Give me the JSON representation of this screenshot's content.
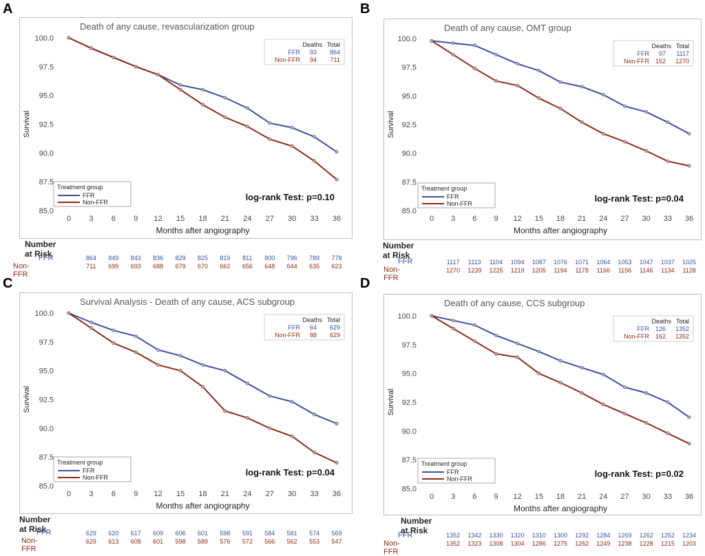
{
  "colors": {
    "ffr": "#3b4ea0",
    "non_ffr": "#8b2a17",
    "grid": "#dddddd",
    "frame": "#bdbdbd"
  },
  "common": {
    "x_ticks": [
      "0",
      "3",
      "6",
      "9",
      "12",
      "15",
      "18",
      "21",
      "24",
      "27",
      "30",
      "33",
      "36"
    ],
    "y_ticks": [
      "100.0",
      "97.5",
      "95.0",
      "92.5",
      "90.0",
      "87.5",
      "85.0"
    ],
    "xlabel": "Months after angiography",
    "ylabel": "Survival",
    "legend_title": "Treatment group",
    "legend_ffr": "FFR",
    "legend_nonffr": "Non-FFR",
    "stats_deaths": "Deaths",
    "stats_total": "Total",
    "stats_ffr": "FFR",
    "stats_nonffr": "Non-FFR",
    "risk_title": "Number at Risk",
    "risk_ffr": "FFR",
    "risk_nonffr": "Non-FFR"
  },
  "chart_data": [
    {
      "type": "line",
      "panel": "A",
      "title": "Death of any cause, revascularization group",
      "xlabel": "Months after angiography",
      "ylabel": "Survival",
      "x": [
        0,
        3,
        6,
        9,
        12,
        15,
        18,
        21,
        24,
        27,
        30,
        33,
        36
      ],
      "xlim": [
        0,
        36
      ],
      "ylim": [
        85,
        100
      ],
      "series": [
        {
          "name": "FFR",
          "values": [
            100.0,
            99.1,
            98.3,
            97.5,
            96.8,
            95.9,
            95.5,
            94.8,
            93.9,
            92.6,
            92.2,
            91.4,
            90.1
          ]
        },
        {
          "name": "Non-FFR",
          "values": [
            100.0,
            99.1,
            98.3,
            97.5,
            96.8,
            95.5,
            94.2,
            93.1,
            92.3,
            91.2,
            90.6,
            89.3,
            87.7
          ]
        }
      ],
      "deaths": {
        "ffr": "93",
        "nonffr": "94"
      },
      "total": {
        "ffr": "864",
        "nonffr": "711"
      },
      "logrank": "log-rank Test: p=0.10",
      "risk": {
        "ffr": [
          "864",
          "849",
          "843",
          "836",
          "829",
          "825",
          "819",
          "811",
          "800",
          "796",
          "789",
          "778"
        ],
        "nonffr": [
          "711",
          "699",
          "693",
          "688",
          "679",
          "670",
          "662",
          "656",
          "648",
          "644",
          "635",
          "623"
        ]
      }
    },
    {
      "type": "line",
      "panel": "B",
      "title": "Death of any cause, OMT group",
      "xlabel": "Months after angiography",
      "ylabel": "Survival",
      "x": [
        0,
        3,
        6,
        9,
        12,
        15,
        18,
        21,
        24,
        27,
        30,
        33,
        36
      ],
      "xlim": [
        0,
        36
      ],
      "ylim": [
        85,
        100
      ],
      "series": [
        {
          "name": "FFR",
          "values": [
            99.8,
            99.6,
            99.4,
            98.6,
            97.8,
            97.2,
            96.2,
            95.8,
            95.1,
            94.1,
            93.6,
            92.7,
            91.7
          ]
        },
        {
          "name": "Non-FFR",
          "values": [
            99.8,
            98.6,
            97.4,
            96.3,
            95.9,
            94.8,
            93.9,
            92.7,
            91.7,
            91.0,
            90.2,
            89.3,
            88.9
          ]
        }
      ],
      "deaths": {
        "ffr": "97",
        "nonffr": "152"
      },
      "total": {
        "ffr": "1117",
        "nonffr": "1270"
      },
      "logrank": "log-rank Test: p=0.04",
      "risk": {
        "ffr": [
          "1117",
          "1113",
          "1104",
          "1094",
          "1087",
          "1076",
          "1071",
          "1064",
          "1053",
          "1047",
          "1037",
          "1025"
        ],
        "nonffr": [
          "1270",
          "1239",
          "1225",
          "1219",
          "1205",
          "1194",
          "1178",
          "1166",
          "1156",
          "1146",
          "1134",
          "1128"
        ]
      }
    },
    {
      "type": "line",
      "panel": "C",
      "title": "Survival Analysis - Death of any cause, ACS subgroup",
      "xlabel": "Months after angiography",
      "ylabel": "Survival",
      "x": [
        0,
        3,
        6,
        9,
        12,
        15,
        18,
        21,
        24,
        27,
        30,
        33,
        36
      ],
      "xlim": [
        0,
        36
      ],
      "ylim": [
        85,
        100
      ],
      "series": [
        {
          "name": "FFR",
          "values": [
            100.0,
            99.2,
            98.5,
            98.0,
            96.8,
            96.3,
            95.5,
            95.0,
            93.9,
            92.8,
            92.3,
            91.2,
            90.4
          ]
        },
        {
          "name": "Non-FFR",
          "values": [
            100.0,
            98.7,
            97.4,
            96.6,
            95.5,
            95.0,
            93.6,
            91.5,
            90.9,
            90.0,
            89.3,
            87.9,
            87.0
          ]
        }
      ],
      "deaths": {
        "ffr": "64",
        "nonffr": "88"
      },
      "total": {
        "ffr": "629",
        "nonffr": "629"
      },
      "logrank": "log-rank Test: p=0.04",
      "risk": {
        "ffr": [
          "629",
          "620",
          "617",
          "609",
          "606",
          "601",
          "598",
          "591",
          "584",
          "581",
          "574",
          "569"
        ],
        "nonffr": [
          "629",
          "613",
          "608",
          "601",
          "598",
          "589",
          "576",
          "572",
          "566",
          "562",
          "553",
          "547"
        ]
      }
    },
    {
      "type": "line",
      "panel": "D",
      "title": "Death of any cause, CCS subgroup",
      "xlabel": "Months after angiography",
      "ylabel": "Survival",
      "x": [
        0,
        3,
        6,
        9,
        12,
        15,
        18,
        21,
        24,
        27,
        30,
        33,
        36
      ],
      "xlim": [
        0,
        36
      ],
      "ylim": [
        85,
        100
      ],
      "series": [
        {
          "name": "FFR",
          "values": [
            100.0,
            99.6,
            99.2,
            98.3,
            97.6,
            96.9,
            96.1,
            95.5,
            94.9,
            93.8,
            93.3,
            92.5,
            91.2
          ]
        },
        {
          "name": "Non-FFR",
          "values": [
            100.0,
            98.9,
            97.8,
            96.7,
            96.4,
            95.0,
            94.2,
            93.3,
            92.3,
            91.5,
            90.7,
            89.8,
            88.9
          ]
        }
      ],
      "deaths": {
        "ffr": "126",
        "nonffr": "162"
      },
      "total": {
        "ffr": "1352",
        "nonffr": "1352"
      },
      "logrank": "log-rank Test: p=0.02",
      "risk": {
        "ffr": [
          "1352",
          "1342",
          "1330",
          "1320",
          "1310",
          "1300",
          "1292",
          "1284",
          "1269",
          "1262",
          "1252",
          "1234"
        ],
        "nonffr": [
          "1352",
          "1323",
          "1308",
          "1304",
          "1286",
          "1275",
          "1262",
          "1249",
          "1238",
          "1228",
          "1215",
          "1203"
        ]
      }
    }
  ]
}
